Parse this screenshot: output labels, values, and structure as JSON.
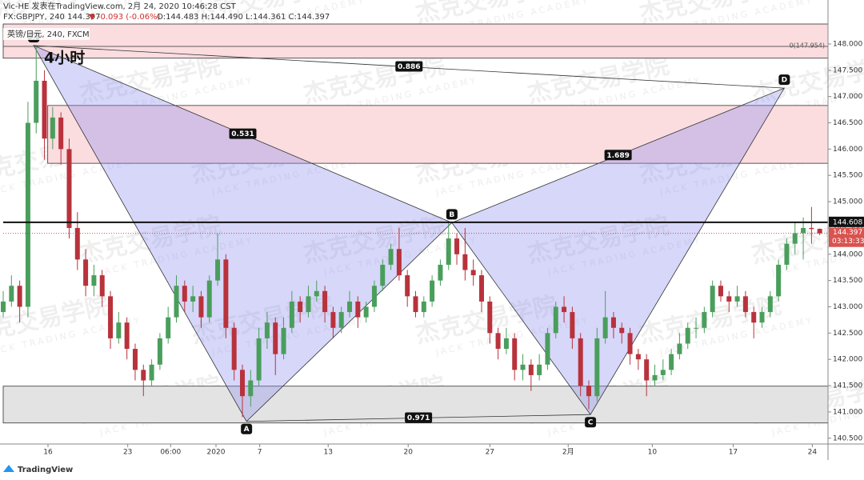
{
  "chart_data": {
    "type": "candlestick",
    "header": "Vic-HE 发表在TradingView.com, 2月 24, 2020 10:46:28 CST",
    "symbol_line": "FX:GBPJPY, 240 144.397",
    "change": "▼ -0.093 (-0.06%)",
    "ohlc_line": "O:144.483 H:144.490 L:144.361 C:144.397",
    "legend": "英镑/日元, 240, FXCM",
    "timeframe": "4小时",
    "brand": "TradingView",
    "watermark": {
      "cn": "杰克交易学院",
      "en": "JACK TRADING ACADEMY"
    },
    "up_color": "#4a9e5c",
    "down_color": "#b8323c",
    "xlim": [
      0,
      100
    ],
    "ylim": [
      140.39,
      148.38
    ],
    "yticks": [
      {
        "value": 140.5,
        "label": "140.500"
      },
      {
        "value": 141,
        "label": "141.000"
      },
      {
        "value": 141.5,
        "label": "141.500"
      },
      {
        "value": 142,
        "label": "142.000"
      },
      {
        "value": 142.5,
        "label": "142.500"
      },
      {
        "value": 143,
        "label": "143.000"
      },
      {
        "value": 143.5,
        "label": "143.500"
      },
      {
        "value": 144,
        "label": "144.000"
      },
      {
        "value": 144.5,
        "label": "144.500"
      },
      {
        "value": 145,
        "label": "145.000"
      },
      {
        "value": 145.5,
        "label": "145.500"
      },
      {
        "value": 146,
        "label": "146.000"
      },
      {
        "value": 146.5,
        "label": "146.500"
      },
      {
        "value": 147,
        "label": "147.000"
      },
      {
        "value": 147.5,
        "label": "147.500"
      },
      {
        "value": 148,
        "label": "148.000"
      }
    ],
    "xticks": [
      {
        "value": 5.43,
        "label": "16"
      },
      {
        "value": 15.1,
        "label": "23"
      },
      {
        "value": 20.3,
        "label": "06:00"
      },
      {
        "value": 25.8,
        "label": "2020"
      },
      {
        "value": 31.1,
        "label": "7"
      },
      {
        "value": 39.4,
        "label": "13"
      },
      {
        "value": 49.1,
        "label": "20"
      },
      {
        "value": 59.0,
        "label": "27"
      },
      {
        "value": 68.5,
        "label": "2月"
      },
      {
        "value": 78.7,
        "label": "10"
      },
      {
        "value": 88.5,
        "label": "17"
      },
      {
        "value": 98.1,
        "label": "24"
      }
    ],
    "candles": [
      [
        142.9,
        143.3,
        142.8,
        143.1
      ],
      [
        143.1,
        143.6,
        143.0,
        143.4
      ],
      [
        143.4,
        143.5,
        142.7,
        143.0
      ],
      [
        143.0,
        146.9,
        142.8,
        146.5
      ],
      [
        146.5,
        147.97,
        146.3,
        147.3
      ],
      [
        147.3,
        147.5,
        145.8,
        146.2
      ],
      [
        146.2,
        146.8,
        146.0,
        146.6
      ],
      [
        146.6,
        146.7,
        145.7,
        146.0
      ],
      [
        146.0,
        146.2,
        144.3,
        144.5
      ],
      [
        144.5,
        144.8,
        143.7,
        143.9
      ],
      [
        143.9,
        144.1,
        143.2,
        143.4
      ],
      [
        143.4,
        143.8,
        143.2,
        143.6
      ],
      [
        143.6,
        143.7,
        143.0,
        143.2
      ],
      [
        143.2,
        143.3,
        142.2,
        142.4
      ],
      [
        142.4,
        142.9,
        142.3,
        142.7
      ],
      [
        142.7,
        142.8,
        142.0,
        142.2
      ],
      [
        142.2,
        142.3,
        141.6,
        141.8
      ],
      [
        141.8,
        141.9,
        141.3,
        141.6
      ],
      [
        141.6,
        142.0,
        141.5,
        141.9
      ],
      [
        141.9,
        142.5,
        141.8,
        142.4
      ],
      [
        142.4,
        143.0,
        142.3,
        142.8
      ],
      [
        142.8,
        143.6,
        142.7,
        143.4
      ],
      [
        143.4,
        143.5,
        142.9,
        143.1
      ],
      [
        143.1,
        143.4,
        142.9,
        143.2
      ],
      [
        143.2,
        143.3,
        142.6,
        142.8
      ],
      [
        142.8,
        143.6,
        142.7,
        143.5
      ],
      [
        143.5,
        144.39,
        143.4,
        143.9
      ],
      [
        143.9,
        144.0,
        142.4,
        142.6
      ],
      [
        142.6,
        142.7,
        141.6,
        141.8
      ],
      [
        141.8,
        141.9,
        140.9,
        141.3
      ],
      [
        141.3,
        141.8,
        141.1,
        141.6
      ],
      [
        141.6,
        142.6,
        141.5,
        142.4
      ],
      [
        142.4,
        142.9,
        142.2,
        142.7
      ],
      [
        142.7,
        142.8,
        141.7,
        142.1
      ],
      [
        142.1,
        142.8,
        142.0,
        142.6
      ],
      [
        142.6,
        143.3,
        142.5,
        143.1
      ],
      [
        143.1,
        143.2,
        142.7,
        142.9
      ],
      [
        142.9,
        143.4,
        142.8,
        143.2
      ],
      [
        143.2,
        143.5,
        143.1,
        143.3
      ],
      [
        143.3,
        143.4,
        142.7,
        142.9
      ],
      [
        142.9,
        143.0,
        142.4,
        142.6
      ],
      [
        142.6,
        143.0,
        142.5,
        142.9
      ],
      [
        142.9,
        143.3,
        142.8,
        143.1
      ],
      [
        143.1,
        143.2,
        142.6,
        142.8
      ],
      [
        142.8,
        143.1,
        142.7,
        143.0
      ],
      [
        143.0,
        143.5,
        142.9,
        143.4
      ],
      [
        143.4,
        143.9,
        143.3,
        143.8
      ],
      [
        143.8,
        144.2,
        143.7,
        144.1
      ],
      [
        144.1,
        144.5,
        143.5,
        143.6
      ],
      [
        143.6,
        143.7,
        143.0,
        143.2
      ],
      [
        143.2,
        143.3,
        142.8,
        142.9
      ],
      [
        142.9,
        143.2,
        142.8,
        143.1
      ],
      [
        143.1,
        143.6,
        143.0,
        143.5
      ],
      [
        143.5,
        143.9,
        143.4,
        143.8
      ],
      [
        143.8,
        144.6,
        143.7,
        144.3
      ],
      [
        144.3,
        144.4,
        143.8,
        144.0
      ],
      [
        144.0,
        144.5,
        143.5,
        143.7
      ],
      [
        143.7,
        143.9,
        143.4,
        143.6
      ],
      [
        143.6,
        143.7,
        142.9,
        143.1
      ],
      [
        143.1,
        143.2,
        142.3,
        142.5
      ],
      [
        142.5,
        142.6,
        142.0,
        142.2
      ],
      [
        142.2,
        142.6,
        142.1,
        142.4
      ],
      [
        142.4,
        142.5,
        141.6,
        141.8
      ],
      [
        141.8,
        142.1,
        141.6,
        141.9
      ],
      [
        141.9,
        142.0,
        141.4,
        141.7
      ],
      [
        141.7,
        142.1,
        141.6,
        141.9
      ],
      [
        141.9,
        142.6,
        141.8,
        142.5
      ],
      [
        142.5,
        143.1,
        142.4,
        143.0
      ],
      [
        143.0,
        143.2,
        142.7,
        142.9
      ],
      [
        142.9,
        143.0,
        142.2,
        142.4
      ],
      [
        142.4,
        142.5,
        141.3,
        141.5
      ],
      [
        141.5,
        141.6,
        141.05,
        141.3
      ],
      [
        141.3,
        142.6,
        141.2,
        142.4
      ],
      [
        142.4,
        143.3,
        142.3,
        142.8
      ],
      [
        142.8,
        142.9,
        142.4,
        142.6
      ],
      [
        142.6,
        142.7,
        142.3,
        142.5
      ],
      [
        142.5,
        142.6,
        141.9,
        142.1
      ],
      [
        142.1,
        142.2,
        141.8,
        142.0
      ],
      [
        142.0,
        142.1,
        141.3,
        141.6
      ],
      [
        141.6,
        141.9,
        141.5,
        141.7
      ],
      [
        141.7,
        142.0,
        141.6,
        141.8
      ],
      [
        141.8,
        142.2,
        141.7,
        142.1
      ],
      [
        142.1,
        142.5,
        142.0,
        142.3
      ],
      [
        142.3,
        142.7,
        142.2,
        142.6
      ],
      [
        142.6,
        142.8,
        142.4,
        142.6
      ],
      [
        142.6,
        143.0,
        142.5,
        142.9
      ],
      [
        142.9,
        143.5,
        142.8,
        143.4
      ],
      [
        143.4,
        143.5,
        143.1,
        143.2
      ],
      [
        143.2,
        143.3,
        142.9,
        143.1
      ],
      [
        143.1,
        143.4,
        143.0,
        143.2
      ],
      [
        143.2,
        143.3,
        142.8,
        142.9
      ],
      [
        142.9,
        143.0,
        142.4,
        142.7
      ],
      [
        142.7,
        143.0,
        142.6,
        142.9
      ],
      [
        142.9,
        143.3,
        142.8,
        143.2
      ],
      [
        143.2,
        143.9,
        143.1,
        143.8
      ],
      [
        143.8,
        144.3,
        143.7,
        144.2
      ],
      [
        144.2,
        144.6,
        144.0,
        144.4
      ],
      [
        144.4,
        144.7,
        143.9,
        144.5
      ],
      [
        144.5,
        144.9,
        144.2,
        144.48
      ],
      [
        144.483,
        144.49,
        144.361,
        144.397
      ]
    ],
    "zones": [
      {
        "x": [
          0,
          100
        ],
        "y": [
          147.73,
          148.38
        ],
        "color": "#fbdcdf"
      },
      {
        "x": [
          5.4,
          100
        ],
        "y": [
          145.73,
          146.83
        ],
        "color": "#fbdcdf"
      },
      {
        "x": [
          0,
          100
        ],
        "y": [
          140.79,
          141.49
        ],
        "color": "#e3e3e3"
      }
    ],
    "fib_line": {
      "value": 147.954,
      "label": "0(147.954)"
    },
    "level_line": 144.608,
    "last_price": 144.397,
    "countdown": "03:13:33",
    "pattern": {
      "color": "#8c8cf0",
      "points": [
        {
          "label": "X",
          "x": 3.7,
          "y": 147.97
        },
        {
          "label": "A",
          "x": 29.5,
          "y": 140.82
        },
        {
          "label": "B",
          "x": 54.4,
          "y": 144.6
        },
        {
          "label": "C",
          "x": 71.2,
          "y": 140.95
        },
        {
          "label": "D",
          "x": 94.7,
          "y": 147.16
        }
      ],
      "ratios": [
        "0.886",
        "0.531",
        "1.689",
        "0.971"
      ]
    }
  }
}
